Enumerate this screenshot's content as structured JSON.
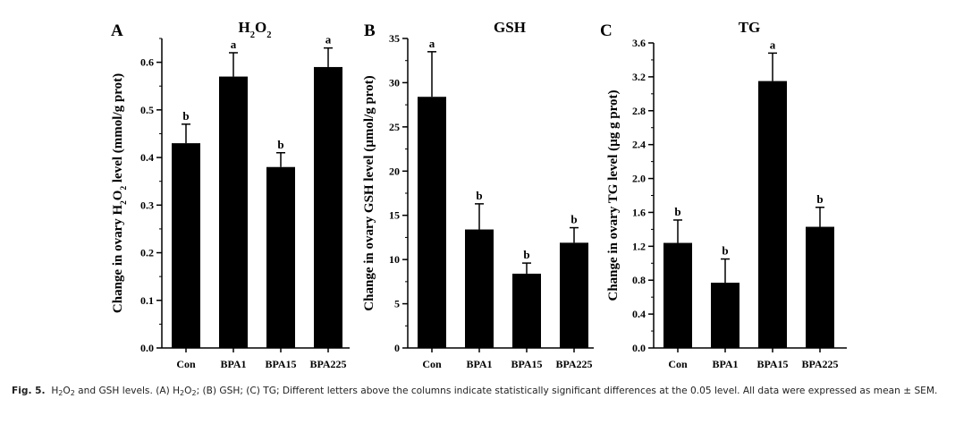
{
  "chart_data": [
    {
      "type": "bar",
      "panel": "A",
      "title_parts": [
        {
          "t": "H"
        },
        {
          "t": "2",
          "sub": true
        },
        {
          "t": "O"
        },
        {
          "t": "2",
          "sub": true
        }
      ],
      "ylabel_parts": [
        {
          "t": "Change in ovary H"
        },
        {
          "t": "2",
          "sub": true
        },
        {
          "t": "O"
        },
        {
          "t": "2",
          "sub": true
        },
        {
          "t": " level (mmol/g prot)"
        }
      ],
      "categories": [
        "Con",
        "BPA1",
        "BPA15",
        "BPA225"
      ],
      "values": [
        0.43,
        0.57,
        0.38,
        0.59
      ],
      "errors": [
        0.04,
        0.05,
        0.03,
        0.04
      ],
      "sig_letters": [
        "b",
        "a",
        "b",
        "a"
      ],
      "ylim": [
        0,
        0.65
      ],
      "yticks": [
        "0.0",
        "0.1",
        "0.2",
        "0.3",
        "0.4",
        "0.5",
        "0.6"
      ],
      "ytick_values": [
        0,
        0.1,
        0.2,
        0.3,
        0.4,
        0.5,
        0.6
      ],
      "minor_step": 0.05
    },
    {
      "type": "bar",
      "panel": "B",
      "title_parts": [
        {
          "t": "GSH"
        }
      ],
      "ylabel_parts": [
        {
          "t": "Change in ovary GSH level (µmol/g prot)"
        }
      ],
      "categories": [
        "Con",
        "BPA1",
        "BPA15",
        "BPA225"
      ],
      "values": [
        28.4,
        13.4,
        8.4,
        11.9
      ],
      "errors": [
        5.1,
        2.9,
        1.2,
        1.7
      ],
      "sig_letters": [
        "a",
        "b",
        "b",
        "b"
      ],
      "ylim": [
        0,
        35
      ],
      "yticks": [
        "0",
        "5",
        "10",
        "15",
        "20",
        "25",
        "30",
        "35"
      ],
      "ytick_values": [
        0,
        5,
        10,
        15,
        20,
        25,
        30,
        35
      ],
      "minor_step": 2.5
    },
    {
      "type": "bar",
      "panel": "C",
      "title_parts": [
        {
          "t": "TG"
        }
      ],
      "ylabel_parts": [
        {
          "t": "Change in ovary TG level (µg g prot)"
        }
      ],
      "categories": [
        "Con",
        "BPA1",
        "BPA15",
        "BPA225"
      ],
      "values": [
        1.24,
        0.77,
        3.15,
        1.43
      ],
      "errors": [
        0.27,
        0.28,
        0.33,
        0.23
      ],
      "sig_letters": [
        "b",
        "b",
        "a",
        "b"
      ],
      "ylim": [
        0,
        3.6
      ],
      "yticks": [
        "0.0",
        "0.4",
        "0.8",
        "1.2",
        "1.6",
        "2.0",
        "2.4",
        "2.8",
        "3.2",
        "3.6"
      ],
      "ytick_values": [
        0,
        0.4,
        0.8,
        1.2,
        1.6,
        2.0,
        2.4,
        2.8,
        3.2,
        3.6
      ],
      "minor_step": 0.2
    }
  ],
  "caption": {
    "label": "Fig. 5.",
    "parts": [
      {
        "t": "H"
      },
      {
        "t": "2",
        "sub": true
      },
      {
        "t": "O"
      },
      {
        "t": "2",
        "sub": true
      },
      {
        "t": " and GSH levels. (A) H"
      },
      {
        "t": "2",
        "sub": true
      },
      {
        "t": "O"
      },
      {
        "t": "2",
        "sub": true
      },
      {
        "t": "; (B) GSH; (C) TG; Different letters above the columns indicate statistically significant differences at the 0.05 level. All data were expressed as mean ± SEM."
      }
    ]
  }
}
